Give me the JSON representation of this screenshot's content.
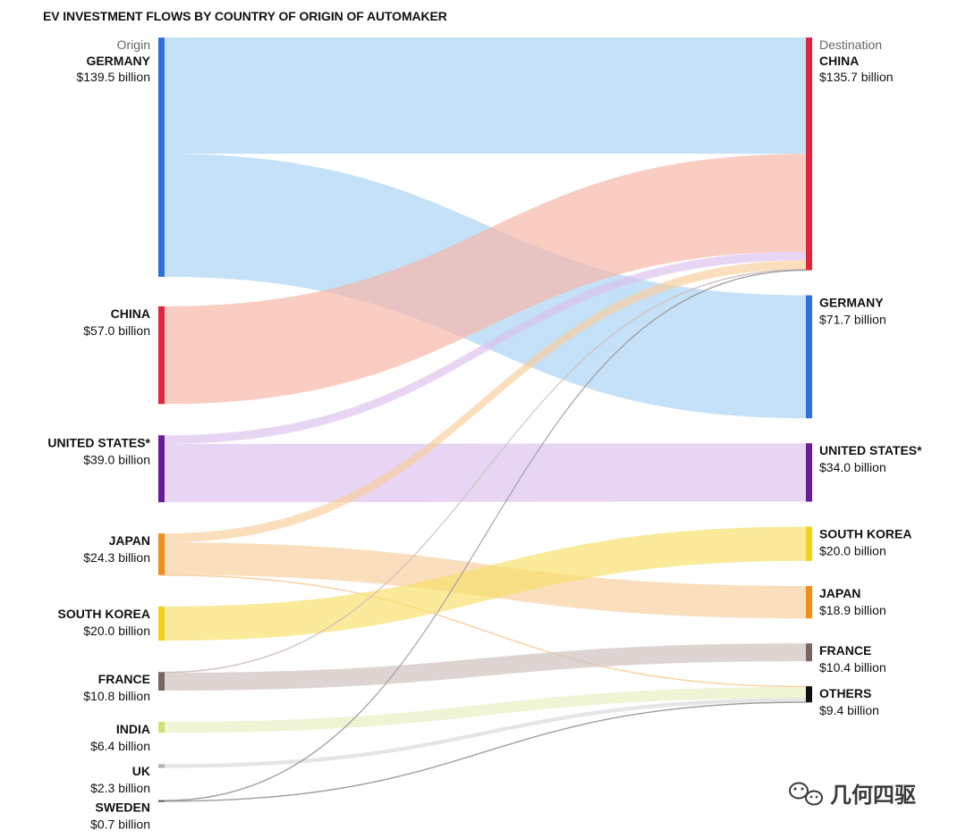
{
  "chart_data": {
    "type": "sankey",
    "title": "EV INVESTMENT FLOWS BY COUNTRY OF ORIGIN OF AUTOMAKER",
    "origin_header": "Origin",
    "destination_header": "Destination",
    "origins": [
      {
        "id": "germany",
        "name": "GERMANY",
        "value_label": "$139.5 billion",
        "value": 139.5,
        "color": "#2f6fdc"
      },
      {
        "id": "china",
        "name": "CHINA",
        "value_label": "$57.0 billion",
        "value": 57.0,
        "color": "#e0263f"
      },
      {
        "id": "us",
        "name": "UNITED STATES*",
        "value_label": "$39.0 billion",
        "value": 39.0,
        "color": "#6a1b9a"
      },
      {
        "id": "japan",
        "name": "JAPAN",
        "value_label": "$24.3 billion",
        "value": 24.3,
        "color": "#f28c1b"
      },
      {
        "id": "skorea",
        "name": "SOUTH KOREA",
        "value_label": "$20.0 billion",
        "value": 20.0,
        "color": "#f2d21b"
      },
      {
        "id": "france",
        "name": "FRANCE",
        "value_label": "$10.8 billion",
        "value": 10.8,
        "color": "#7a6560"
      },
      {
        "id": "india",
        "name": "INDIA",
        "value_label": "$6.4 billion",
        "value": 6.4,
        "color": "#cde07a"
      },
      {
        "id": "uk",
        "name": "UK",
        "value_label": "$2.3 billion",
        "value": 2.3,
        "color": "#b5b5b5"
      },
      {
        "id": "sweden",
        "name": "SWEDEN",
        "value_label": "$0.7 billion",
        "value": 0.7,
        "color": "#555555"
      }
    ],
    "destinations": [
      {
        "id": "china",
        "name": "CHINA",
        "value_label": "$135.7 billion",
        "value": 135.7,
        "color": "#e0263f"
      },
      {
        "id": "germany",
        "name": "GERMANY",
        "value_label": "$71.7 billion",
        "value": 71.7,
        "color": "#2f6fdc"
      },
      {
        "id": "us",
        "name": "UNITED STATES*",
        "value_label": "$34.0 billion",
        "value": 34.0,
        "color": "#6a1b9a"
      },
      {
        "id": "skorea",
        "name": "SOUTH KOREA",
        "value_label": "$20.0 billion",
        "value": 20.0,
        "color": "#f2d21b"
      },
      {
        "id": "japan",
        "name": "JAPAN",
        "value_label": "$18.9 billion",
        "value": 18.9,
        "color": "#f28c1b"
      },
      {
        "id": "france",
        "name": "FRANCE",
        "value_label": "$10.4 billion",
        "value": 10.4,
        "color": "#7a6560"
      },
      {
        "id": "others",
        "name": "OTHERS",
        "value_label": "$9.4 billion",
        "value": 9.4,
        "color": "#111111"
      }
    ],
    "flows": [
      {
        "from": "germany",
        "to": "china",
        "value": 67.8,
        "color": "#a9d3f3"
      },
      {
        "from": "germany",
        "to": "germany",
        "value": 71.7,
        "color": "#a9d3f3"
      },
      {
        "from": "china",
        "to": "china",
        "value": 57.0,
        "color": "#f7b6a6"
      },
      {
        "from": "us",
        "to": "china",
        "value": 5.0,
        "color": "#dcc1ee"
      },
      {
        "from": "us",
        "to": "us",
        "value": 34.0,
        "color": "#dcc1ee"
      },
      {
        "from": "japan",
        "to": "china",
        "value": 5.2,
        "color": "#f9cf9c"
      },
      {
        "from": "japan",
        "to": "japan",
        "value": 18.9,
        "color": "#f9cf9c"
      },
      {
        "from": "japan",
        "to": "others",
        "value": 0.2,
        "color": "#f9cf9c"
      },
      {
        "from": "skorea",
        "to": "skorea",
        "value": 20.0,
        "color": "#f7e06a"
      },
      {
        "from": "france",
        "to": "china",
        "value": 0.4,
        "color": "#cfc1bd"
      },
      {
        "from": "france",
        "to": "france",
        "value": 10.4,
        "color": "#cfc1bd"
      },
      {
        "from": "india",
        "to": "others",
        "value": 6.4,
        "color": "#e6efbf"
      },
      {
        "from": "uk",
        "to": "others",
        "value": 2.3,
        "color": "#d8d8d8"
      },
      {
        "from": "sweden",
        "to": "china",
        "value": 0.3,
        "color": "#9a9a9a"
      },
      {
        "from": "sweden",
        "to": "others",
        "value": 0.4,
        "color": "#9a9a9a"
      }
    ]
  },
  "watermark": {
    "text": "几何四驱",
    "icon": "wechat-icon"
  }
}
